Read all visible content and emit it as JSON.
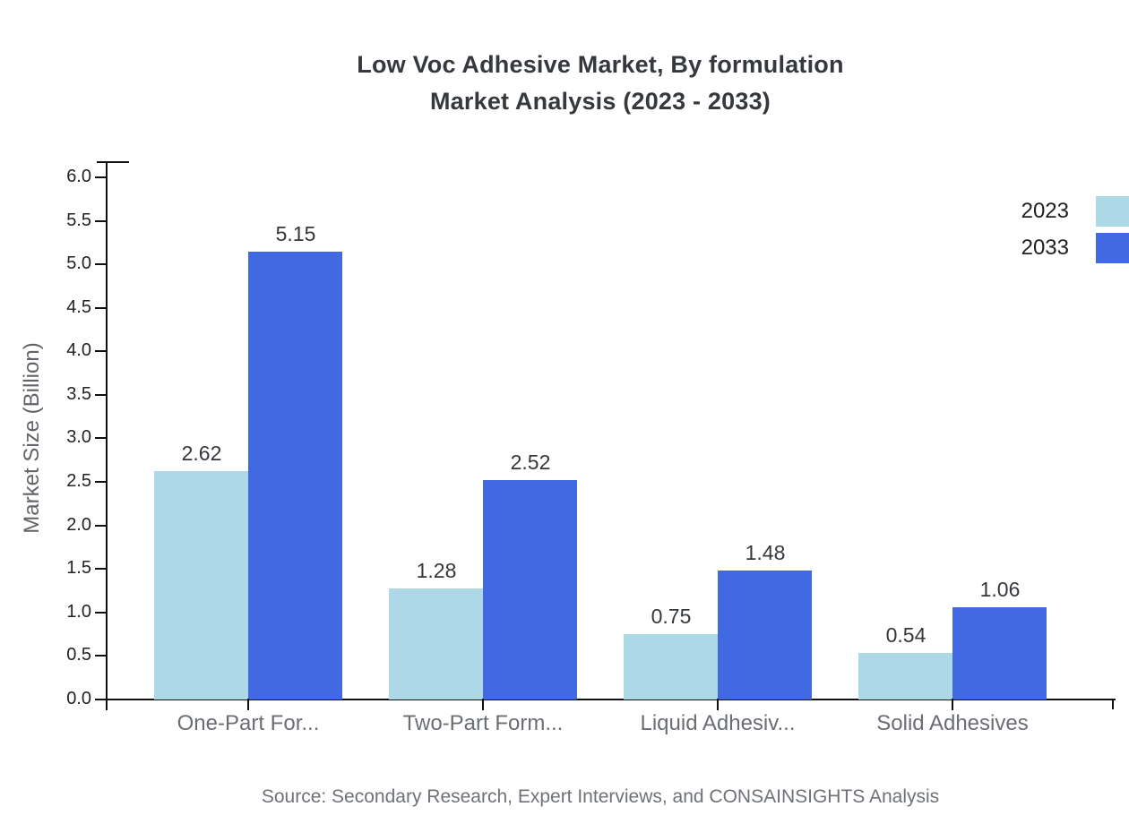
{
  "chart_data": {
    "type": "bar",
    "title_line1": "Low Voc Adhesive Market, By formulation",
    "title_line2": "Market Analysis (2023 - 2033)",
    "title": "Low Voc Adhesive Market, By formulation Market Analysis (2023 - 2033)",
    "categories": [
      "One-Part For...",
      "Two-Part Form...",
      "Liquid Adhesiv...",
      "Solid Adhesives"
    ],
    "series": [
      {
        "name": "2023",
        "color": "#ADD8E6",
        "values": [
          2.62,
          1.28,
          0.75,
          0.54
        ]
      },
      {
        "name": "2033",
        "color": "#4169E1",
        "values": [
          5.15,
          2.52,
          1.48,
          1.06
        ]
      }
    ],
    "xlabel": "",
    "ylabel": "Market Size (Billion)",
    "ylim": [
      0.0,
      6.0
    ],
    "ytick_step": 0.5,
    "grid": false,
    "legend_position": "top-right",
    "value_labels_shown": true,
    "axis_color": "#111111",
    "text_colors": {
      "title": "#35383c",
      "tick_labels": "#202327",
      "category_labels": "#6a6e73",
      "value_labels": "#34373b",
      "axis_title": "#606468",
      "source": "#6e7277"
    }
  },
  "footer": {
    "source": "Source: Secondary Research, Expert Interviews, and CONSAINSIGHTS Analysis"
  }
}
